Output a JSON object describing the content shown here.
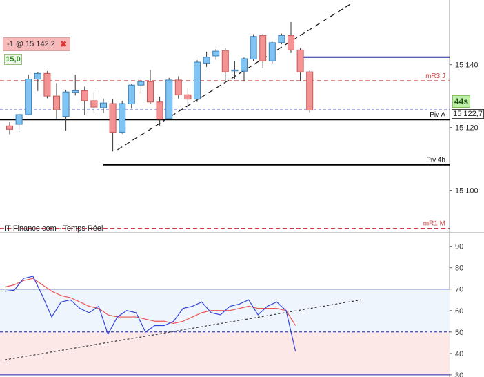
{
  "order": {
    "label": "-1 @ 15 142,2",
    "close": "✖"
  },
  "quantity": "15,0",
  "timer": "44s",
  "current_price": "15 122,7",
  "source": "IT-Finance.com - Temps Réel",
  "colors": {
    "bull": "#7fc4f2",
    "bull_border": "#3b7fb8",
    "bear": "#f49393",
    "bear_border": "#c85656",
    "resistance_red": "#d04040",
    "level_blue": "#22229e",
    "stoch_main": "#3344dd",
    "stoch_signal": "#ee5555",
    "zone_upper": "#eef5fc",
    "zone_lower": "#fde8e8"
  },
  "chart_data": [
    {
      "type": "candlestick",
      "title": "",
      "y_ticks": [
        15100,
        15120,
        15140
      ],
      "y_tick_labels": [
        "15 100",
        "15 120",
        "15 140"
      ],
      "ylim": [
        15086.7,
        15160.6
      ],
      "candles": [
        {
          "o": 15120.5,
          "h": 15121.8,
          "l": 15117.8,
          "c": 15119.4
        },
        {
          "o": 15121.0,
          "h": 15124.6,
          "l": 15118.5,
          "c": 15124.1
        },
        {
          "o": 15124.1,
          "h": 15136.8,
          "l": 15123.9,
          "c": 15135.4
        },
        {
          "o": 15135.4,
          "h": 15137.7,
          "l": 15131.6,
          "c": 15137.2
        },
        {
          "o": 15137.2,
          "h": 15137.9,
          "l": 15129.3,
          "c": 15130.0
        },
        {
          "o": 15130.0,
          "h": 15134.1,
          "l": 15122.6,
          "c": 15125.6
        },
        {
          "o": 15123.5,
          "h": 15132.0,
          "l": 15119.0,
          "c": 15131.3
        },
        {
          "o": 15131.2,
          "h": 15136.8,
          "l": 15130.2,
          "c": 15131.7
        },
        {
          "o": 15131.7,
          "h": 15133.0,
          "l": 15123.9,
          "c": 15128.5
        },
        {
          "o": 15128.5,
          "h": 15131.3,
          "l": 15124.6,
          "c": 15126.5
        },
        {
          "o": 15126.3,
          "h": 15129.2,
          "l": 15124.6,
          "c": 15127.8
        },
        {
          "o": 15127.6,
          "h": 15129.0,
          "l": 15112.4,
          "c": 15118.5
        },
        {
          "o": 15118.5,
          "h": 15128.5,
          "l": 15118.0,
          "c": 15127.6
        },
        {
          "o": 15127.5,
          "h": 15133.9,
          "l": 15126.0,
          "c": 15133.5
        },
        {
          "o": 15133.5,
          "h": 15135.3,
          "l": 15131.1,
          "c": 15134.6
        },
        {
          "o": 15134.6,
          "h": 15138.3,
          "l": 15127.6,
          "c": 15128.1
        },
        {
          "o": 15128.1,
          "h": 15129.8,
          "l": 15120.6,
          "c": 15122.6
        },
        {
          "o": 15122.8,
          "h": 15135.8,
          "l": 15122.6,
          "c": 15135.1
        },
        {
          "o": 15135.1,
          "h": 15136.3,
          "l": 15129.2,
          "c": 15130.4
        },
        {
          "o": 15130.4,
          "h": 15132.4,
          "l": 15126.3,
          "c": 15129.0
        },
        {
          "o": 15129.0,
          "h": 15141.4,
          "l": 15128.1,
          "c": 15140.8
        },
        {
          "o": 15140.5,
          "h": 15144.1,
          "l": 15139.3,
          "c": 15142.4
        },
        {
          "o": 15142.8,
          "h": 15145.0,
          "l": 15141.6,
          "c": 15144.3
        },
        {
          "o": 15144.5,
          "h": 15145.3,
          "l": 15134.6,
          "c": 15137.7
        },
        {
          "o": 15138.0,
          "h": 15141.2,
          "l": 15135.4,
          "c": 15138.3
        },
        {
          "o": 15137.9,
          "h": 15142.3,
          "l": 15134.6,
          "c": 15141.9
        },
        {
          "o": 15141.8,
          "h": 15149.7,
          "l": 15141.2,
          "c": 15149.0
        },
        {
          "o": 15149.3,
          "h": 15149.8,
          "l": 15138.9,
          "c": 15141.2
        },
        {
          "o": 15141.2,
          "h": 15147.3,
          "l": 15140.4,
          "c": 15147.0
        },
        {
          "o": 15147.0,
          "h": 15149.9,
          "l": 15146.5,
          "c": 15149.3
        },
        {
          "o": 15149.3,
          "h": 15153.6,
          "l": 15143.7,
          "c": 15144.7
        },
        {
          "o": 15144.7,
          "h": 15145.3,
          "l": 15134.8,
          "c": 15137.7
        },
        {
          "o": 15137.7,
          "h": 15138.1,
          "l": 15124.8,
          "c": 15125.5
        }
      ],
      "levels": [
        {
          "label": "mR3 J",
          "value": 15134.9,
          "style": "red-dashed"
        },
        {
          "label": "",
          "value": 15142.4,
          "style": "blue-solid"
        },
        {
          "label": "",
          "value": 15125.6,
          "style": "blue-dashed"
        },
        {
          "label": "Piv A",
          "value": 15122.5,
          "style": "black-solid"
        },
        {
          "label": "Piv 4h",
          "value": 15108.1,
          "style": "black-solid"
        },
        {
          "label": "mR1 M",
          "value": 15087.9,
          "style": "red-dashed"
        }
      ],
      "trendline": {
        "from": [
          11.5,
          15112.9
        ],
        "to": [
          36.5,
          15159.6
        ]
      }
    },
    {
      "type": "line",
      "title": "",
      "y_ticks": [
        30,
        40,
        50,
        60,
        70,
        80,
        90
      ],
      "ylim": [
        29,
        96
      ],
      "levels": [
        30,
        50,
        70
      ],
      "zones": [
        {
          "from": 50,
          "to": 70,
          "name": "upper"
        },
        {
          "from": 30,
          "to": 50,
          "name": "lower"
        }
      ],
      "series": [
        {
          "role": "main",
          "values": [
            69,
            69.5,
            75,
            76,
            67,
            57,
            64,
            65,
            61,
            59,
            62,
            49,
            57,
            60,
            59,
            50,
            53,
            53,
            55,
            61,
            62,
            64,
            59,
            58,
            62,
            63,
            65,
            58,
            62,
            64,
            60,
            41
          ]
        },
        {
          "role": "signal",
          "values": [
            71,
            72,
            74,
            75,
            72,
            69,
            67,
            66,
            64,
            62,
            61,
            58,
            57,
            57,
            57,
            56,
            55,
            55,
            54,
            55,
            57,
            59,
            60,
            60,
            60,
            61,
            62,
            61,
            61,
            61,
            60,
            53
          ]
        }
      ],
      "trendline": {
        "from": [
          0,
          37
        ],
        "to": [
          38,
          65
        ]
      }
    }
  ]
}
